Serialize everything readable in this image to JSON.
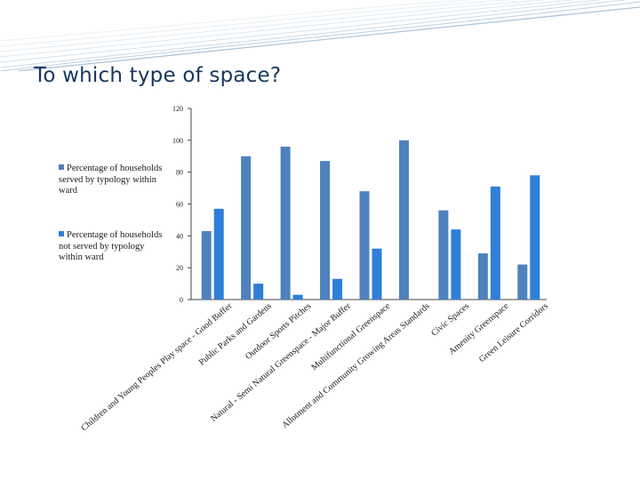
{
  "slide": {
    "title": "To which type of space?"
  },
  "chart_data": {
    "type": "bar",
    "title": "",
    "xlabel": "",
    "ylabel": "",
    "ylim": [
      0,
      120
    ],
    "yticks": [
      "0",
      "20",
      "40",
      "60",
      "80",
      "100",
      "120"
    ],
    "grid": false,
    "legend_position": "left",
    "categories": [
      "Children and Young Peoples Play space - Good Buffer",
      "Public Parks and Gardens",
      "Outdoor Sports Pitches",
      "Natural - Semi Natural Greenspace - Major Buffer",
      "Multifunctional Greenspace",
      "Allotment and Community Growing Areas Standards",
      "Civic Spaces",
      "Amenity Greenspace",
      "Green Leisure Corridors"
    ],
    "series": [
      {
        "name": "Percentage of households served by typology within ward",
        "color": "#4f81bd",
        "values": [
          43,
          90,
          96,
          87,
          68,
          100,
          56,
          29,
          22
        ]
      },
      {
        "name": "Percentage of households not served by typology within ward",
        "color": "#2f7ed8",
        "values": [
          57,
          10,
          3,
          13,
          32,
          0,
          44,
          71,
          78
        ]
      }
    ]
  }
}
